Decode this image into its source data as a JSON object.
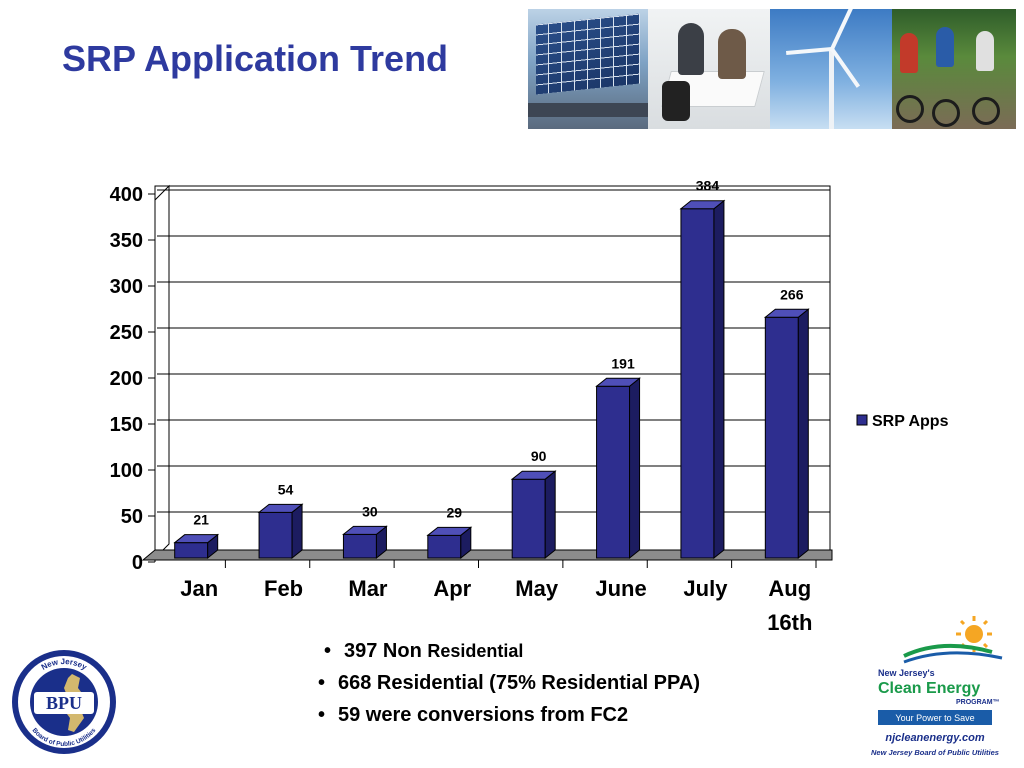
{
  "slide": {
    "title": "SRP Application Trend"
  },
  "chart_data": {
    "type": "bar",
    "style": "3d",
    "categories": [
      "Jan",
      "Feb",
      "Mar",
      "Apr",
      "May",
      "June",
      "July",
      "Aug 16th"
    ],
    "series": [
      {
        "name": "SRP Apps",
        "values": [
          21,
          54,
          30,
          29,
          90,
          191,
          384,
          266
        ],
        "color": "#2e2e8f"
      }
    ],
    "data_labels": [
      "21",
      "54",
      "30",
      "29",
      "90",
      "191",
      "384",
      "266"
    ],
    "y_ticks": [
      "0",
      "50",
      "100",
      "150",
      "200",
      "250",
      "300",
      "350",
      "400"
    ],
    "ylim": [
      0,
      400
    ],
    "grid": true,
    "legend": "right",
    "title": "",
    "xlabel": "",
    "ylabel": ""
  },
  "bullets": [
    {
      "main": "397 Non",
      "suffix": "Residential"
    },
    {
      "main": "668 Residential (75% Residential PPA)",
      "suffix": ""
    },
    {
      "main": "59 were conversions from FC2",
      "suffix": ""
    }
  ],
  "logos": {
    "bpu": {
      "center_text": "BPU",
      "ring_top": "New Jersey",
      "ring_bottom": "Board of Public Utilities"
    },
    "clean_energy": {
      "line1": "New Jersey's",
      "line2": "Clean Energy",
      "line3": "PROGRAM™",
      "tagline": "Your Power to Save",
      "url": "njcleanenergy.com",
      "agency": "New Jersey Board of Public Utilities"
    }
  },
  "colors": {
    "title": "#2e3a9f",
    "bar_front": "#2e2e8f",
    "bar_side": "#1c1c60",
    "bar_top": "#4f4fb8",
    "logo_green": "#1a9a4a",
    "logo_blue": "#1a5ca8"
  }
}
